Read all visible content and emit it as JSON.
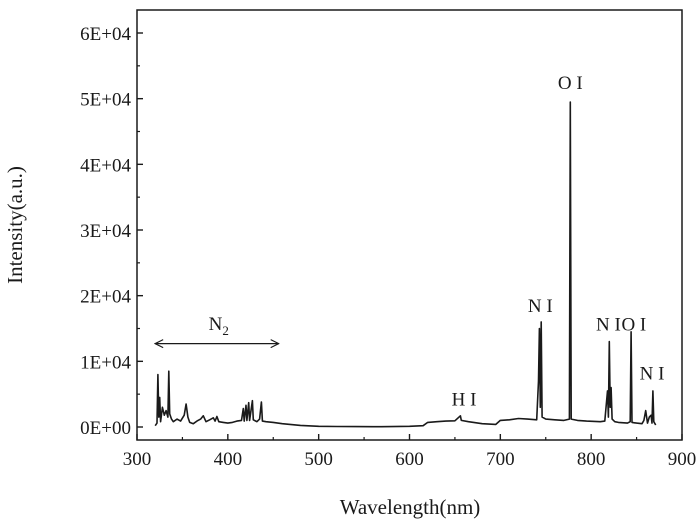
{
  "chart_data": {
    "type": "line",
    "title": "",
    "xlabel": "Wavelength(nm)",
    "ylabel": "Intensity(a.u.)",
    "xlim": [
      300,
      900
    ],
    "ylim": [
      0,
      60000
    ],
    "grid": false,
    "legend": "none",
    "line_color": "#1a1a1a",
    "x_ticks": [
      {
        "value": 300,
        "label": "300"
      },
      {
        "value": 400,
        "label": "400"
      },
      {
        "value": 500,
        "label": "500"
      },
      {
        "value": 600,
        "label": "600"
      },
      {
        "value": 700,
        "label": "700"
      },
      {
        "value": 800,
        "label": "800"
      },
      {
        "value": 900,
        "label": "900"
      }
    ],
    "y_ticks": [
      {
        "value": 0,
        "label": "0E+00"
      },
      {
        "value": 10000,
        "label": "1E+04"
      },
      {
        "value": 20000,
        "label": "2E+04"
      },
      {
        "value": 30000,
        "label": "3E+04"
      },
      {
        "value": 40000,
        "label": "4E+04"
      },
      {
        "value": 50000,
        "label": "5E+04"
      },
      {
        "value": 60000,
        "label": "6E+04"
      }
    ],
    "series": [
      {
        "points": [
          [
            320,
            200
          ],
          [
            322,
            600
          ],
          [
            323,
            8000
          ],
          [
            324,
            1500
          ],
          [
            325,
            4500
          ],
          [
            326,
            800
          ],
          [
            328,
            3000
          ],
          [
            330,
            1800
          ],
          [
            332,
            2500
          ],
          [
            334,
            1500
          ],
          [
            335,
            8500
          ],
          [
            336,
            2000
          ],
          [
            338,
            1200
          ],
          [
            340,
            800
          ],
          [
            344,
            1200
          ],
          [
            348,
            900
          ],
          [
            352,
            1800
          ],
          [
            354,
            3500
          ],
          [
            356,
            1500
          ],
          [
            358,
            700
          ],
          [
            362,
            500
          ],
          [
            366,
            900
          ],
          [
            370,
            1200
          ],
          [
            373,
            1700
          ],
          [
            376,
            800
          ],
          [
            380,
            1100
          ],
          [
            384,
            1400
          ],
          [
            386,
            900
          ],
          [
            388,
            1600
          ],
          [
            390,
            800
          ],
          [
            395,
            700
          ],
          [
            400,
            600
          ],
          [
            405,
            700
          ],
          [
            410,
            900
          ],
          [
            415,
            1000
          ],
          [
            417,
            2800
          ],
          [
            418,
            900
          ],
          [
            420,
            3300
          ],
          [
            421,
            1000
          ],
          [
            423,
            3700
          ],
          [
            424,
            1000
          ],
          [
            427,
            4000
          ],
          [
            428,
            1100
          ],
          [
            432,
            800
          ],
          [
            435,
            1200
          ],
          [
            437,
            3800
          ],
          [
            438,
            900
          ],
          [
            442,
            800
          ],
          [
            450,
            700
          ],
          [
            460,
            500
          ],
          [
            480,
            250
          ],
          [
            500,
            100
          ],
          [
            520,
            80
          ],
          [
            540,
            60
          ],
          [
            560,
            50
          ],
          [
            580,
            60
          ],
          [
            600,
            100
          ],
          [
            615,
            200
          ],
          [
            620,
            700
          ],
          [
            630,
            800
          ],
          [
            640,
            900
          ],
          [
            650,
            950
          ],
          [
            656,
            1700
          ],
          [
            657,
            1000
          ],
          [
            665,
            800
          ],
          [
            680,
            500
          ],
          [
            695,
            400
          ],
          [
            700,
            1000
          ],
          [
            710,
            1100
          ],
          [
            720,
            1300
          ],
          [
            730,
            1200
          ],
          [
            740,
            1100
          ],
          [
            742,
            7000
          ],
          [
            743,
            15000
          ],
          [
            744,
            3000
          ],
          [
            745,
            16000
          ],
          [
            746,
            1500
          ],
          [
            750,
            1200
          ],
          [
            760,
            1100
          ],
          [
            770,
            1000
          ],
          [
            776,
            1200
          ],
          [
            777,
            49500
          ],
          [
            778,
            1200
          ],
          [
            785,
            1000
          ],
          [
            795,
            900
          ],
          [
            810,
            800
          ],
          [
            815,
            900
          ],
          [
            818,
            5500
          ],
          [
            819,
            1500
          ],
          [
            820,
            13000
          ],
          [
            821,
            3000
          ],
          [
            822,
            6000
          ],
          [
            823,
            1200
          ],
          [
            826,
            800
          ],
          [
            830,
            700
          ],
          [
            840,
            600
          ],
          [
            843,
            800
          ],
          [
            844,
            14500
          ],
          [
            845,
            700
          ],
          [
            850,
            600
          ],
          [
            856,
            500
          ],
          [
            858,
            1000
          ],
          [
            860,
            2500
          ],
          [
            862,
            600
          ],
          [
            864,
            1500
          ],
          [
            866,
            1800
          ],
          [
            867,
            600
          ],
          [
            868,
            5500
          ],
          [
            869,
            800
          ],
          [
            871,
            300
          ]
        ]
      }
    ],
    "annotations": [
      {
        "text": "O I",
        "x": 777,
        "y": 51500
      },
      {
        "text": "N I",
        "x": 744,
        "y": 17500
      },
      {
        "text": "N I",
        "x": 819,
        "y": 14700
      },
      {
        "text": "O I",
        "x": 847,
        "y": 14700
      },
      {
        "text": "N I",
        "x": 867,
        "y": 7200
      },
      {
        "text": "H I",
        "x": 660,
        "y": 3300
      }
    ],
    "n2_label": {
      "base": "N",
      "sub": "2",
      "x": 390,
      "y": 14800
    },
    "n2_range": {
      "x1": 320,
      "x2": 456,
      "y": 12700
    }
  }
}
